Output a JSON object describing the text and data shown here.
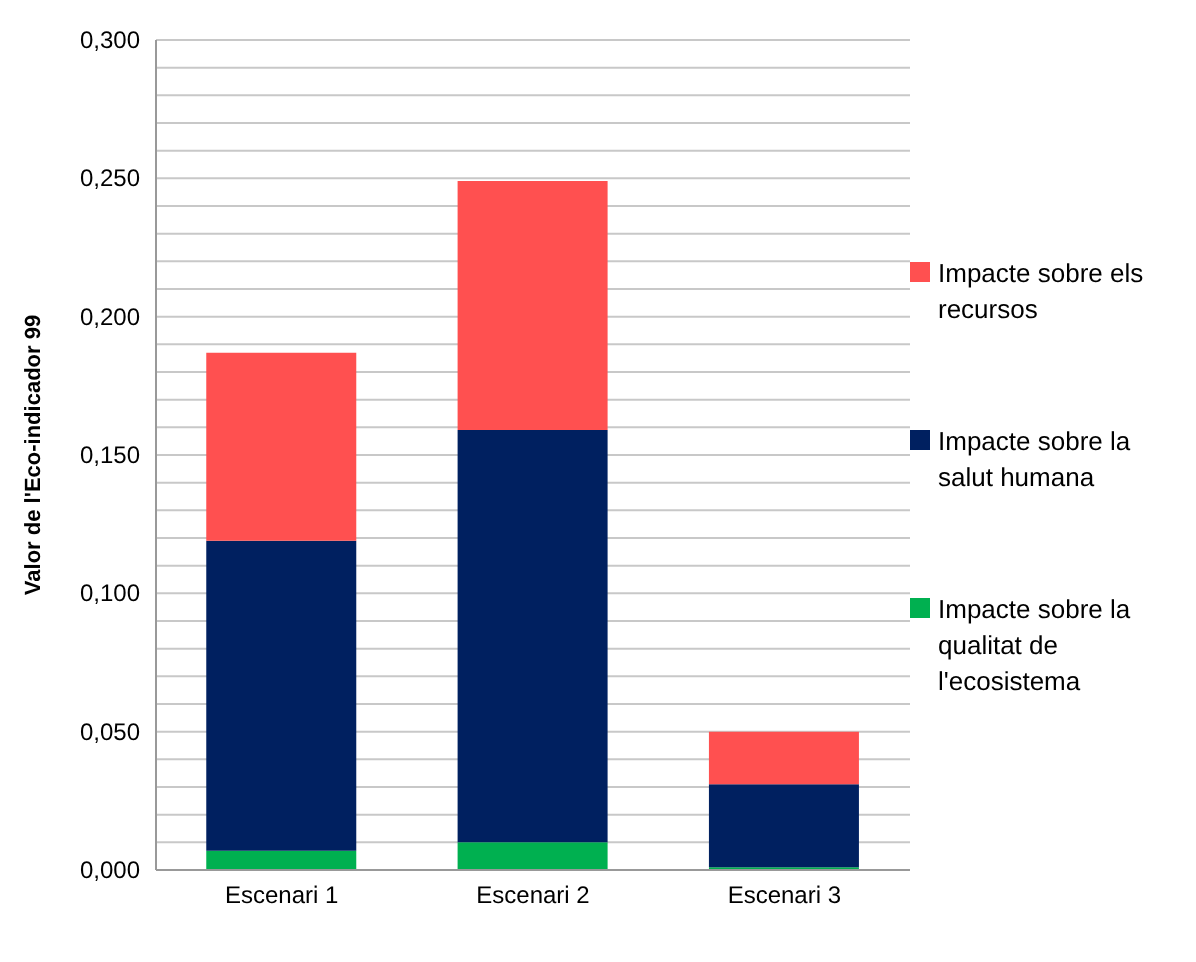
{
  "chart_data": {
    "type": "bar",
    "stacked": true,
    "ylabel": "Valor de l'Eco-indicador 99",
    "categories": [
      "Escenari 1",
      "Escenari 2",
      "Escenari 3"
    ],
    "series": [
      {
        "name": "Impacte sobre la qualitat de l'ecosistema",
        "color": "#00b050",
        "values": [
          0.007,
          0.01,
          0.001
        ]
      },
      {
        "name": "Impacte sobre la salut humana",
        "color": "#002060",
        "values": [
          0.112,
          0.149,
          0.03
        ]
      },
      {
        "name": "Impacte sobre els recursos",
        "color": "#ff5050",
        "values": [
          0.068,
          0.09,
          0.019
        ]
      }
    ],
    "ylim": [
      0,
      0.3
    ],
    "yticks": [
      {
        "value": 0,
        "label": "0,000"
      },
      {
        "value": 0.01,
        "label": null
      },
      {
        "value": 0.02,
        "label": null
      },
      {
        "value": 0.03,
        "label": null
      },
      {
        "value": 0.04,
        "label": null
      },
      {
        "value": 0.05,
        "label": "0,050"
      },
      {
        "value": 0.06,
        "label": null
      },
      {
        "value": 0.07,
        "label": null
      },
      {
        "value": 0.08,
        "label": null
      },
      {
        "value": 0.09,
        "label": null
      },
      {
        "value": 0.1,
        "label": "0,100"
      },
      {
        "value": 0.11,
        "label": null
      },
      {
        "value": 0.12,
        "label": null
      },
      {
        "value": 0.13,
        "label": null
      },
      {
        "value": 0.14,
        "label": null
      },
      {
        "value": 0.15,
        "label": "0,150"
      },
      {
        "value": 0.16,
        "label": null
      },
      {
        "value": 0.17,
        "label": null
      },
      {
        "value": 0.18,
        "label": null
      },
      {
        "value": 0.19,
        "label": null
      },
      {
        "value": 0.2,
        "label": "0,200"
      },
      {
        "value": 0.21,
        "label": null
      },
      {
        "value": 0.22,
        "label": null
      },
      {
        "value": 0.23,
        "label": null
      },
      {
        "value": 0.24,
        "label": null
      },
      {
        "value": 0.25,
        "label": "0,250"
      },
      {
        "value": 0.26,
        "label": null
      },
      {
        "value": 0.27,
        "label": null
      },
      {
        "value": 0.28,
        "label": null
      },
      {
        "value": 0.29,
        "label": null
      },
      {
        "value": 0.3,
        "label": "0,300"
      }
    ],
    "grid": "y",
    "legend": "right"
  }
}
